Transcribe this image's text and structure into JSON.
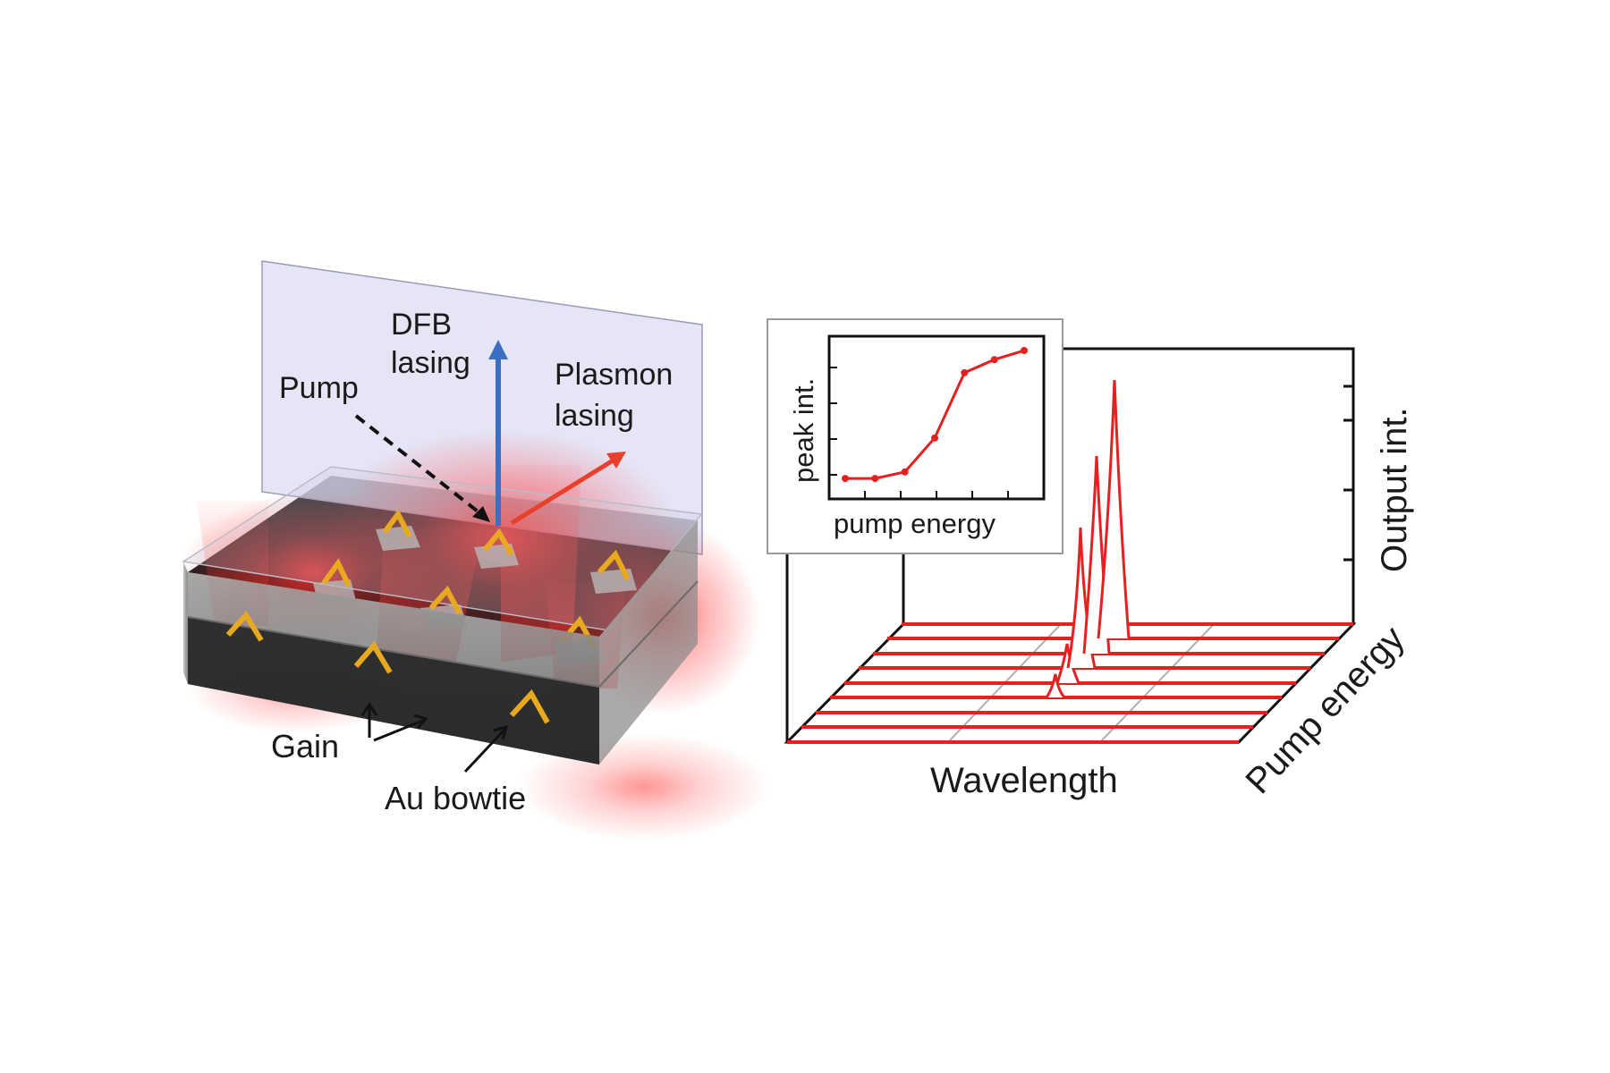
{
  "left_panel": {
    "labels": {
      "dfb_line1": "DFB",
      "dfb_line2": "lasing",
      "pump": "Pump",
      "plasmon_line1": "Plasmon",
      "plasmon_line2": "lasing",
      "gain": "Gain",
      "au_bowtie": "Au bowtie"
    },
    "colors": {
      "dfb_arrow": "#3a6fc4",
      "plasmon_arrow": "#e8402a",
      "pump_arrow": "#111111",
      "plane": "#dcdcf3",
      "gain_film": "#202020",
      "bowtie": "#e8a920",
      "glow": "#ff2a2a"
    }
  },
  "right_panel": {
    "axis_labels": {
      "wavelength": "Wavelength",
      "output": "Output int.",
      "pump_energy": "Pump energy"
    },
    "inset": {
      "xlabel": "pump energy",
      "ylabel": "peak int."
    },
    "colors": {
      "spectra": "#e62020",
      "axes": "#111111",
      "grid": "#b0b0b0"
    }
  },
  "chart_data": {
    "type": "line",
    "xlabel": "pump energy",
    "ylabel": "peak int.",
    "x": [
      1,
      2,
      3,
      4,
      5,
      6,
      7
    ],
    "series": [
      {
        "values": [
          0.02,
          0.02,
          0.07,
          0.33,
          0.83,
          0.93,
          1.0
        ]
      }
    ],
    "grid": false
  }
}
